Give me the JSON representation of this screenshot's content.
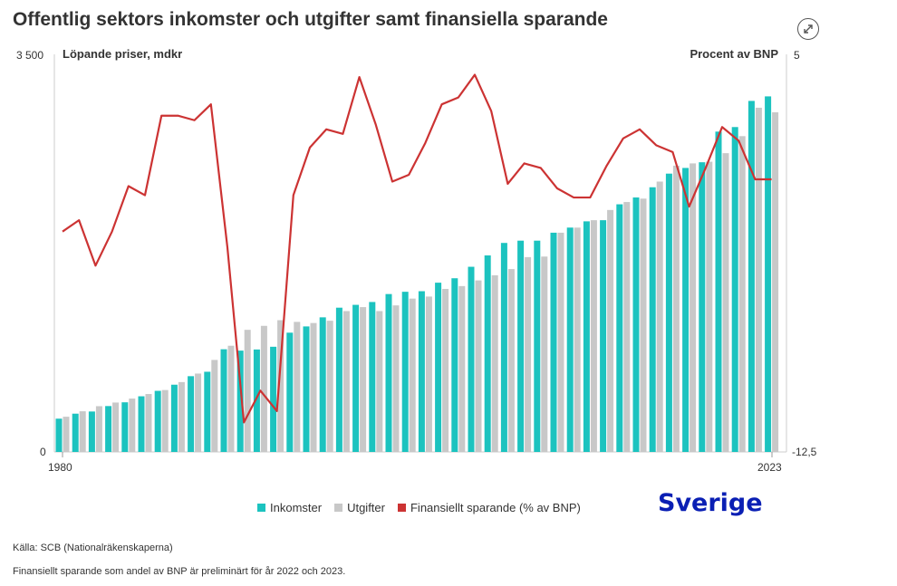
{
  "title": "Offentlig sektors inkomster och utgifter samt finansiella sparande",
  "expand_icon": "expand-arrows-icon",
  "chart_data": {
    "type": "bar",
    "left_axis_label": "Löpande priser, mdkr",
    "right_axis_label": "Procent av BNP",
    "left_ylim": [
      0,
      3500
    ],
    "right_ylim": [
      -12.5,
      5
    ],
    "left_ticks": [
      "0",
      "3 500"
    ],
    "right_ticks": [
      "-12,5",
      "5"
    ],
    "x_tick_labels": [
      "1980",
      "2023"
    ],
    "categories": [
      1980,
      1981,
      1982,
      1983,
      1984,
      1985,
      1986,
      1987,
      1988,
      1989,
      1990,
      1991,
      1992,
      1993,
      1994,
      1995,
      1996,
      1997,
      1998,
      1999,
      2000,
      2001,
      2002,
      2003,
      2004,
      2005,
      2006,
      2007,
      2008,
      2009,
      2010,
      2011,
      2012,
      2013,
      2014,
      2015,
      2016,
      2017,
      2018,
      2019,
      2020,
      2021,
      2022,
      2023
    ],
    "series": [
      {
        "name": "Inkomster",
        "kind": "bar",
        "color": "#1cc3bf",
        "values": [
          293,
          337,
          356,
          404,
          437,
          490,
          538,
          592,
          667,
          706,
          904,
          892,
          902,
          926,
          1050,
          1105,
          1185,
          1270,
          1295,
          1320,
          1390,
          1410,
          1415,
          1490,
          1529,
          1630,
          1730,
          1840,
          1860,
          1860,
          1930,
          1975,
          2030,
          2040,
          2180,
          2240,
          2330,
          2450,
          2500,
          2550,
          2820,
          2860,
          3090,
          3130
        ]
      },
      {
        "name": "Utgifter",
        "kind": "bar",
        "color": "#c8c8c8",
        "values": [
          310,
          358,
          403,
          435,
          470,
          510,
          545,
          615,
          690,
          810,
          935,
          1075,
          1110,
          1160,
          1145,
          1135,
          1155,
          1240,
          1275,
          1240,
          1290,
          1350,
          1368,
          1435,
          1460,
          1510,
          1555,
          1610,
          1715,
          1720,
          1930,
          1975,
          2040,
          2130,
          2200,
          2230,
          2380,
          2520,
          2540,
          2555,
          2630,
          2780,
          3030,
          2990
        ]
      },
      {
        "name": "Finansiellt sparande (% av BNP)",
        "kind": "line",
        "axis": "right",
        "color": "#cc3333",
        "values": [
          -2.8,
          -2.3,
          -4.3,
          -2.8,
          -0.8,
          -1.2,
          2.3,
          2.3,
          2.1,
          2.8,
          -3.5,
          -11.2,
          -9.8,
          -10.7,
          -1.2,
          0.9,
          1.7,
          1.5,
          4.0,
          1.9,
          -0.6,
          -0.3,
          1.1,
          2.8,
          3.1,
          4.1,
          2.5,
          -0.7,
          0.2,
          0.0,
          -0.9,
          -1.3,
          -1.3,
          0.1,
          1.3,
          1.7,
          1.0,
          0.7,
          -1.7,
          0.0,
          1.8,
          1.2,
          -0.5,
          -0.5
        ]
      }
    ]
  },
  "legend": [
    {
      "label": "Inkomster",
      "color": "#1cc3bf"
    },
    {
      "label": "Utgifter",
      "color": "#c8c8c8"
    },
    {
      "label": "Finansiellt sparande (% av BNP)",
      "color": "#cc3333"
    }
  ],
  "watermark": "Sverige",
  "source": "Källa: SCB (Nationalräkenskaperna)",
  "note": "Finansiellt sparande som andel av BNP är preliminärt för år 2022 och 2023."
}
